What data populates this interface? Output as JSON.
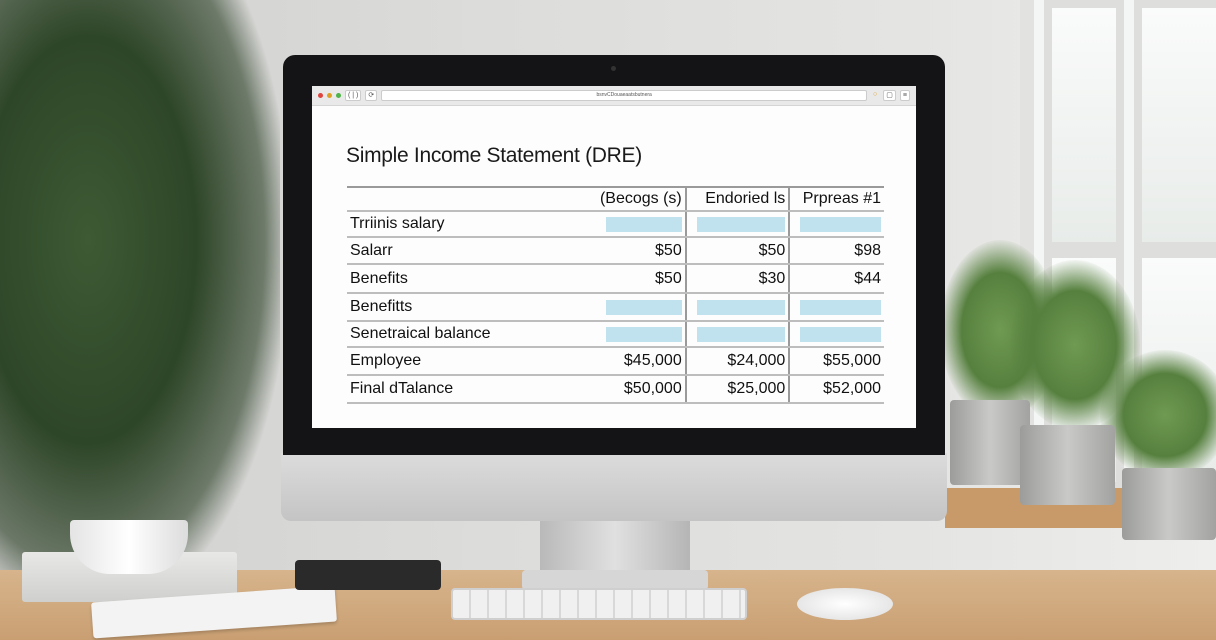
{
  "browser": {
    "back_forward_label": "( | )",
    "url": "bsnvCDouaeaatsbutnera",
    "colors": {
      "close": "#e0443e",
      "minimize": "#dea123",
      "maximize": "#4fb34a"
    }
  },
  "sheet": {
    "title": "Simple Income Statement (DRE)",
    "columns": [
      "(Becogs (s)",
      "Endoried ls",
      "Prpreas #1"
    ],
    "fill_color": "#bfe2ee",
    "rows": [
      {
        "label": "Trriinis salary",
        "values": [
          null,
          null,
          null
        ]
      },
      {
        "label": "Salarr",
        "values": [
          "$50",
          "$50",
          "$98"
        ]
      },
      {
        "label": "Benefits",
        "values": [
          "$50",
          "$30",
          "$44"
        ]
      },
      {
        "label": "Benefitts",
        "values": [
          null,
          null,
          null
        ]
      },
      {
        "label": "Senetraical balance",
        "values": [
          null,
          null,
          null
        ]
      },
      {
        "label": "Employee",
        "values": [
          "$45,000",
          "$24,000",
          "$55,000"
        ]
      },
      {
        "label": "Final dTalance",
        "values": [
          "$50,000",
          "$25,000",
          "$52,000"
        ]
      }
    ]
  }
}
